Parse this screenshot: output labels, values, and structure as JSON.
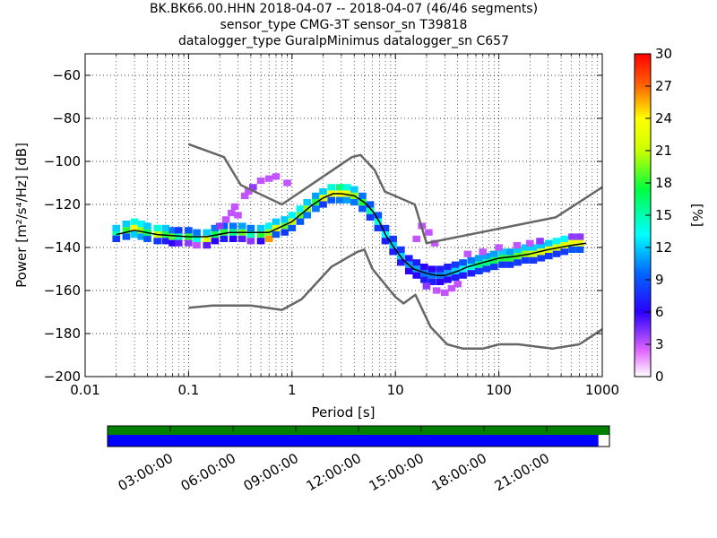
{
  "header": {
    "title_lines": [
      "BK.BK66.00.HHN   2018-04-07 -- 2018-04-07  (46/46 segments)",
      "sensor_type CMG-3T sensor_sn T39818",
      "datalogger_type GuralpMinimus datalogger_sn C657"
    ]
  },
  "chart_data": {
    "type": "heatmap",
    "title": "BK.BK66.00.HHN   2018-04-07 -- 2018-04-07  (46/46 segments)",
    "subtitle": "sensor_type CMG-3T sensor_sn T39818 / datalogger_type GuralpMinimus datalogger_sn C657",
    "xlabel": "Period [s]",
    "ylabel": "Power [m²/s⁴/Hz] [dB]",
    "xscale": "log",
    "xlim": [
      0.01,
      1000
    ],
    "ylim": [
      -200,
      -50
    ],
    "grid": "dotted",
    "x_ticks": [
      {
        "value": 0.01,
        "label": "0.01"
      },
      {
        "value": 0.1,
        "label": "0.1"
      },
      {
        "value": 1,
        "label": "1"
      },
      {
        "value": 10,
        "label": "10"
      },
      {
        "value": 100,
        "label": "100"
      },
      {
        "value": 1000,
        "label": "1000"
      }
    ],
    "y_ticks": [
      {
        "value": -60,
        "label": "−60"
      },
      {
        "value": -80,
        "label": "−80"
      },
      {
        "value": -100,
        "label": "−100"
      },
      {
        "value": -120,
        "label": "−120"
      },
      {
        "value": -140,
        "label": "−140"
      },
      {
        "value": -160,
        "label": "−160"
      },
      {
        "value": -180,
        "label": "−180"
      },
      {
        "value": -200,
        "label": "−200"
      }
    ],
    "colorbar": {
      "label": "[%]",
      "min": 0,
      "max": 30,
      "ticks": [
        "0",
        "3",
        "6",
        "9",
        "12",
        "15",
        "18",
        "21",
        "24",
        "27",
        "30"
      ]
    },
    "mode_curve": {
      "x": [
        0.02,
        0.03,
        0.05,
        0.1,
        0.15,
        0.25,
        0.4,
        0.6,
        1,
        1.5,
        2,
        2.5,
        3,
        4,
        5,
        6,
        7,
        8,
        10,
        12,
        15,
        20,
        25,
        30,
        40,
        50,
        70,
        100,
        150,
        200,
        300,
        500,
        700
      ],
      "y": [
        -134,
        -132,
        -134,
        -135,
        -135,
        -133,
        -133,
        -133,
        -128,
        -121,
        -117,
        -115,
        -115,
        -116,
        -119,
        -123,
        -128,
        -134,
        -141,
        -146,
        -150,
        -152,
        -153,
        -153,
        -151,
        -149,
        -147,
        -145,
        -144,
        -143,
        -141,
        -139,
        -138
      ]
    },
    "nlnm": {
      "x": [
        0.1,
        0.17,
        0.4,
        0.8,
        1.24,
        2.4,
        4.3,
        5,
        6,
        10,
        12,
        15.6,
        21.9,
        31.6,
        45,
        70,
        101,
        154,
        328,
        600,
        1000
      ],
      "y": [
        -168,
        -167,
        -167,
        -169,
        -164,
        -149,
        -142,
        -141,
        -150,
        -163,
        -166,
        -162,
        -177,
        -185,
        -187,
        -187,
        -185,
        -185,
        -187,
        -185,
        -178
      ]
    },
    "nhnm": {
      "x": [
        0.1,
        0.22,
        0.32,
        0.8,
        3.8,
        4.6,
        6.3,
        7.9,
        15.4,
        20,
        354,
        1000
      ],
      "y": [
        -92,
        -98,
        -111,
        -120,
        -98,
        -97,
        -104,
        -114,
        -120,
        -138,
        -126,
        -112
      ]
    },
    "psd_bins": [
      {
        "x": 0.02,
        "y": -134,
        "p": 15
      },
      {
        "x": 0.02,
        "y": -131,
        "p": 12
      },
      {
        "x": 0.02,
        "y": -136,
        "p": 8
      },
      {
        "x": 0.025,
        "y": -132,
        "p": 18
      },
      {
        "x": 0.025,
        "y": -129,
        "p": 12
      },
      {
        "x": 0.025,
        "y": -135,
        "p": 9
      },
      {
        "x": 0.03,
        "y": -131,
        "p": 24
      },
      {
        "x": 0.03,
        "y": -128,
        "p": 14
      },
      {
        "x": 0.03,
        "y": -134,
        "p": 12
      },
      {
        "x": 0.035,
        "y": -132,
        "p": 20
      },
      {
        "x": 0.035,
        "y": -129,
        "p": 13
      },
      {
        "x": 0.035,
        "y": -135,
        "p": 11
      },
      {
        "x": 0.04,
        "y": -133,
        "p": 17
      },
      {
        "x": 0.04,
        "y": -130,
        "p": 12
      },
      {
        "x": 0.04,
        "y": -136,
        "p": 9
      },
      {
        "x": 0.05,
        "y": -134,
        "p": 21
      },
      {
        "x": 0.05,
        "y": -131,
        "p": 14
      },
      {
        "x": 0.05,
        "y": -137,
        "p": 8
      },
      {
        "x": 0.06,
        "y": -134,
        "p": 18
      },
      {
        "x": 0.06,
        "y": -131,
        "p": 12
      },
      {
        "x": 0.06,
        "y": -137,
        "p": 7
      },
      {
        "x": 0.07,
        "y": -135,
        "p": 19
      },
      {
        "x": 0.07,
        "y": -132,
        "p": 10
      },
      {
        "x": 0.07,
        "y": -138,
        "p": 6
      },
      {
        "x": 0.08,
        "y": -135,
        "p": 15
      },
      {
        "x": 0.08,
        "y": -132,
        "p": 8
      },
      {
        "x": 0.08,
        "y": -138,
        "p": 5
      },
      {
        "x": 0.1,
        "y": -135,
        "p": 18
      },
      {
        "x": 0.1,
        "y": -132,
        "p": 9
      },
      {
        "x": 0.1,
        "y": -138,
        "p": 4
      },
      {
        "x": 0.12,
        "y": -136,
        "p": 14
      },
      {
        "x": 0.12,
        "y": -133,
        "p": 10
      },
      {
        "x": 0.12,
        "y": -139,
        "p": 3
      },
      {
        "x": 0.15,
        "y": -136,
        "p": 22
      },
      {
        "x": 0.15,
        "y": -133,
        "p": 12
      },
      {
        "x": 0.15,
        "y": -139,
        "p": 5
      },
      {
        "x": 0.18,
        "y": -134,
        "p": 17
      },
      {
        "x": 0.18,
        "y": -131,
        "p": 10
      },
      {
        "x": 0.18,
        "y": -137,
        "p": 6
      },
      {
        "x": 0.22,
        "y": -133,
        "p": 18
      },
      {
        "x": 0.22,
        "y": -130,
        "p": 9
      },
      {
        "x": 0.22,
        "y": -136,
        "p": 7
      },
      {
        "x": 0.27,
        "y": -133,
        "p": 16
      },
      {
        "x": 0.27,
        "y": -130,
        "p": 10
      },
      {
        "x": 0.27,
        "y": -136,
        "p": 6
      },
      {
        "x": 0.33,
        "y": -133,
        "p": 19
      },
      {
        "x": 0.33,
        "y": -130,
        "p": 11
      },
      {
        "x": 0.33,
        "y": -136,
        "p": 5
      },
      {
        "x": 0.4,
        "y": -134,
        "p": 15
      },
      {
        "x": 0.4,
        "y": -131,
        "p": 10
      },
      {
        "x": 0.4,
        "y": -137,
        "p": 4
      },
      {
        "x": 0.5,
        "y": -134,
        "p": 18
      },
      {
        "x": 0.5,
        "y": -131,
        "p": 12
      },
      {
        "x": 0.5,
        "y": -137,
        "p": 6
      },
      {
        "x": 0.6,
        "y": -133,
        "p": 20
      },
      {
        "x": 0.6,
        "y": -130,
        "p": 13
      },
      {
        "x": 0.6,
        "y": -136,
        "p": 26
      },
      {
        "x": 0.7,
        "y": -131,
        "p": 22
      },
      {
        "x": 0.7,
        "y": -128,
        "p": 12
      },
      {
        "x": 0.7,
        "y": -134,
        "p": 9
      },
      {
        "x": 0.85,
        "y": -130,
        "p": 19
      },
      {
        "x": 0.85,
        "y": -127,
        "p": 12
      },
      {
        "x": 0.85,
        "y": -133,
        "p": 8
      },
      {
        "x": 1.0,
        "y": -128,
        "p": 21
      },
      {
        "x": 1.0,
        "y": -125,
        "p": 13
      },
      {
        "x": 1.0,
        "y": -131,
        "p": 9
      },
      {
        "x": 1.2,
        "y": -125,
        "p": 19
      },
      {
        "x": 1.2,
        "y": -122,
        "p": 13
      },
      {
        "x": 1.2,
        "y": -128,
        "p": 9
      },
      {
        "x": 1.4,
        "y": -122,
        "p": 20
      },
      {
        "x": 1.4,
        "y": -119,
        "p": 12
      },
      {
        "x": 1.4,
        "y": -125,
        "p": 10
      },
      {
        "x": 1.7,
        "y": -119,
        "p": 18
      },
      {
        "x": 1.7,
        "y": -116,
        "p": 11
      },
      {
        "x": 1.7,
        "y": -122,
        "p": 10
      },
      {
        "x": 2.0,
        "y": -117,
        "p": 22
      },
      {
        "x": 2.0,
        "y": -114,
        "p": 12
      },
      {
        "x": 2.0,
        "y": -120,
        "p": 8
      },
      {
        "x": 2.4,
        "y": -115,
        "p": 23
      },
      {
        "x": 2.4,
        "y": -112,
        "p": 14
      },
      {
        "x": 2.4,
        "y": -118,
        "p": 9
      },
      {
        "x": 2.9,
        "y": -115,
        "p": 24
      },
      {
        "x": 2.9,
        "y": -112,
        "p": 16
      },
      {
        "x": 2.9,
        "y": -118,
        "p": 10
      },
      {
        "x": 3.4,
        "y": -115,
        "p": 23
      },
      {
        "x": 3.4,
        "y": -112,
        "p": 14
      },
      {
        "x": 3.4,
        "y": -118,
        "p": 11
      },
      {
        "x": 4.0,
        "y": -116,
        "p": 20
      },
      {
        "x": 4.0,
        "y": -113,
        "p": 12
      },
      {
        "x": 4.0,
        "y": -119,
        "p": 10
      },
      {
        "x": 4.8,
        "y": -119,
        "p": 18
      },
      {
        "x": 4.8,
        "y": -116,
        "p": 10
      },
      {
        "x": 4.8,
        "y": -122,
        "p": 9
      },
      {
        "x": 5.7,
        "y": -123,
        "p": 15
      },
      {
        "x": 5.7,
        "y": -120,
        "p": 9
      },
      {
        "x": 5.7,
        "y": -126,
        "p": 8
      },
      {
        "x": 6.8,
        "y": -128,
        "p": 14
      },
      {
        "x": 6.8,
        "y": -125,
        "p": 9
      },
      {
        "x": 6.8,
        "y": -131,
        "p": 8
      },
      {
        "x": 8.0,
        "y": -134,
        "p": 13
      },
      {
        "x": 8.0,
        "y": -131,
        "p": 8
      },
      {
        "x": 8.0,
        "y": -137,
        "p": 7
      },
      {
        "x": 9.5,
        "y": -139,
        "p": 12
      },
      {
        "x": 9.5,
        "y": -136,
        "p": 8
      },
      {
        "x": 9.5,
        "y": -142,
        "p": 7
      },
      {
        "x": 11.3,
        "y": -144,
        "p": 12
      },
      {
        "x": 11.3,
        "y": -141,
        "p": 8
      },
      {
        "x": 11.3,
        "y": -147,
        "p": 7
      },
      {
        "x": 13.5,
        "y": -148,
        "p": 11
      },
      {
        "x": 13.5,
        "y": -145,
        "p": 7
      },
      {
        "x": 13.5,
        "y": -151,
        "p": 6
      },
      {
        "x": 16,
        "y": -150,
        "p": 11
      },
      {
        "x": 16,
        "y": -147,
        "p": 7
      },
      {
        "x": 16,
        "y": -153,
        "p": 6
      },
      {
        "x": 19,
        "y": -152,
        "p": 10
      },
      {
        "x": 19,
        "y": -149,
        "p": 6
      },
      {
        "x": 19,
        "y": -155,
        "p": 7
      },
      {
        "x": 22.6,
        "y": -153,
        "p": 10
      },
      {
        "x": 22.6,
        "y": -150,
        "p": 6
      },
      {
        "x": 22.6,
        "y": -156,
        "p": 7
      },
      {
        "x": 27,
        "y": -153,
        "p": 10
      },
      {
        "x": 27,
        "y": -150,
        "p": 7
      },
      {
        "x": 27,
        "y": -156,
        "p": 6
      },
      {
        "x": 32,
        "y": -152,
        "p": 11
      },
      {
        "x": 32,
        "y": -149,
        "p": 7
      },
      {
        "x": 32,
        "y": -155,
        "p": 6
      },
      {
        "x": 38,
        "y": -151,
        "p": 12
      },
      {
        "x": 38,
        "y": -148,
        "p": 8
      },
      {
        "x": 38,
        "y": -154,
        "p": 7
      },
      {
        "x": 45,
        "y": -150,
        "p": 13
      },
      {
        "x": 45,
        "y": -147,
        "p": 9
      },
      {
        "x": 45,
        "y": -153,
        "p": 7
      },
      {
        "x": 54,
        "y": -149,
        "p": 14
      },
      {
        "x": 54,
        "y": -146,
        "p": 10
      },
      {
        "x": 54,
        "y": -152,
        "p": 7
      },
      {
        "x": 64,
        "y": -148,
        "p": 16
      },
      {
        "x": 64,
        "y": -145,
        "p": 11
      },
      {
        "x": 64,
        "y": -151,
        "p": 8
      },
      {
        "x": 76,
        "y": -147,
        "p": 16
      },
      {
        "x": 76,
        "y": -144,
        "p": 11
      },
      {
        "x": 76,
        "y": -150,
        "p": 8
      },
      {
        "x": 90,
        "y": -146,
        "p": 17
      },
      {
        "x": 90,
        "y": -143,
        "p": 11
      },
      {
        "x": 90,
        "y": -149,
        "p": 8
      },
      {
        "x": 108,
        "y": -145,
        "p": 18
      },
      {
        "x": 108,
        "y": -142,
        "p": 12
      },
      {
        "x": 108,
        "y": -148,
        "p": 8
      },
      {
        "x": 128,
        "y": -145,
        "p": 18
      },
      {
        "x": 128,
        "y": -142,
        "p": 11
      },
      {
        "x": 128,
        "y": -148,
        "p": 8
      },
      {
        "x": 152,
        "y": -144,
        "p": 19
      },
      {
        "x": 152,
        "y": -141,
        "p": 12
      },
      {
        "x": 152,
        "y": -147,
        "p": 8
      },
      {
        "x": 181,
        "y": -143,
        "p": 20
      },
      {
        "x": 181,
        "y": -140,
        "p": 12
      },
      {
        "x": 181,
        "y": -146,
        "p": 8
      },
      {
        "x": 215,
        "y": -143,
        "p": 21
      },
      {
        "x": 215,
        "y": -140,
        "p": 12
      },
      {
        "x": 215,
        "y": -146,
        "p": 8
      },
      {
        "x": 256,
        "y": -142,
        "p": 22
      },
      {
        "x": 256,
        "y": -139,
        "p": 12
      },
      {
        "x": 256,
        "y": -145,
        "p": 8
      },
      {
        "x": 304,
        "y": -141,
        "p": 22
      },
      {
        "x": 304,
        "y": -138,
        "p": 12
      },
      {
        "x": 304,
        "y": -144,
        "p": 8
      },
      {
        "x": 362,
        "y": -140,
        "p": 22
      },
      {
        "x": 362,
        "y": -137,
        "p": 13
      },
      {
        "x": 362,
        "y": -143,
        "p": 8
      },
      {
        "x": 430,
        "y": -139,
        "p": 22
      },
      {
        "x": 430,
        "y": -136,
        "p": 13
      },
      {
        "x": 430,
        "y": -142,
        "p": 8
      },
      {
        "x": 512,
        "y": -138,
        "p": 23
      },
      {
        "x": 512,
        "y": -135,
        "p": 4
      },
      {
        "x": 512,
        "y": -141,
        "p": 9
      },
      {
        "x": 608,
        "y": -138,
        "p": 23
      },
      {
        "x": 608,
        "y": -135,
        "p": 4
      },
      {
        "x": 608,
        "y": -141,
        "p": 9
      },
      {
        "x": 0.6,
        "y": -108,
        "p": 3
      },
      {
        "x": 0.7,
        "y": -107,
        "p": 3
      },
      {
        "x": 0.5,
        "y": -109,
        "p": 3
      },
      {
        "x": 0.42,
        "y": -112,
        "p": 4
      },
      {
        "x": 0.35,
        "y": -116,
        "p": 3
      },
      {
        "x": 0.28,
        "y": -121,
        "p": 3
      },
      {
        "x": 0.23,
        "y": -127,
        "p": 3
      },
      {
        "x": 0.2,
        "y": -130,
        "p": 4
      },
      {
        "x": 0.3,
        "y": -125,
        "p": 3
      },
      {
        "x": 0.9,
        "y": -110,
        "p": 3
      },
      {
        "x": 0.38,
        "y": -114,
        "p": 3
      },
      {
        "x": 0.26,
        "y": -124,
        "p": 3
      },
      {
        "x": 18,
        "y": -130,
        "p": 3
      },
      {
        "x": 21,
        "y": -133,
        "p": 3
      },
      {
        "x": 16,
        "y": -136,
        "p": 3
      },
      {
        "x": 24,
        "y": -138,
        "p": 3
      },
      {
        "x": 25,
        "y": -160,
        "p": 3
      },
      {
        "x": 30,
        "y": -161,
        "p": 3
      },
      {
        "x": 35,
        "y": -159,
        "p": 3
      },
      {
        "x": 40,
        "y": -157,
        "p": 3
      },
      {
        "x": 20,
        "y": -158,
        "p": 4
      },
      {
        "x": 100,
        "y": -140,
        "p": 3
      },
      {
        "x": 150,
        "y": -139,
        "p": 3
      },
      {
        "x": 200,
        "y": -138,
        "p": 3
      },
      {
        "x": 250,
        "y": -137,
        "p": 4
      },
      {
        "x": 50,
        "y": -143,
        "p": 3
      },
      {
        "x": 70,
        "y": -142,
        "p": 3
      }
    ]
  },
  "coverage": {
    "time_ticks": [
      "03:00:00",
      "06:00:00",
      "09:00:00",
      "12:00:00",
      "15:00:00",
      "18:00:00",
      "21:00:00"
    ],
    "data_fraction": 0.978,
    "colors": {
      "data": "#0000ff",
      "bar": "#008000"
    }
  }
}
